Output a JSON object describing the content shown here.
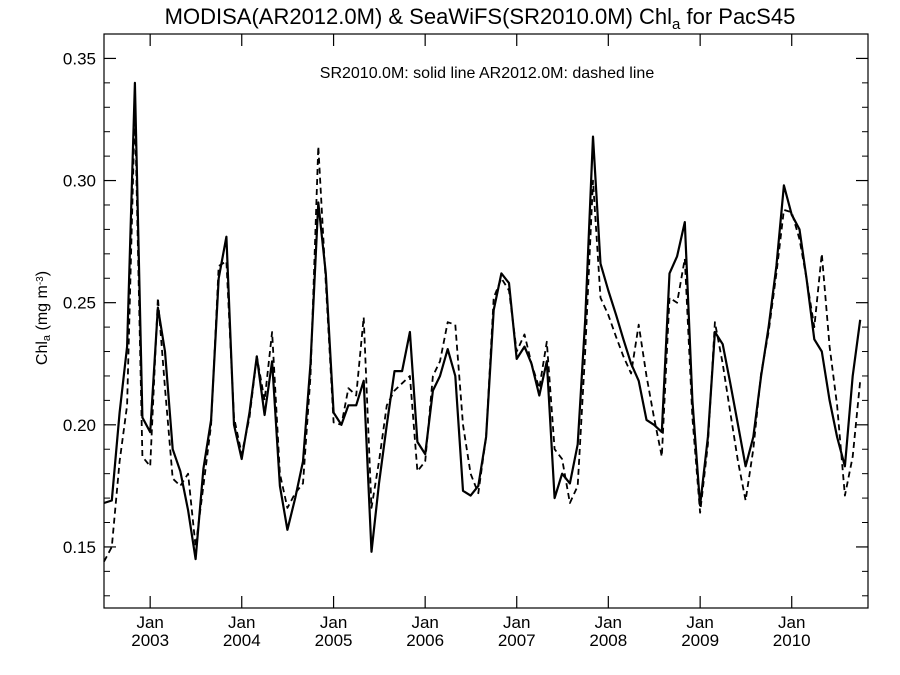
{
  "chart_data": {
    "type": "line",
    "title": {
      "main": "MODISA(AR2012.0M) & SeaWiFS(SR2010.0M)  Chl",
      "sub": "a",
      "tail": " for PacS45"
    },
    "ylabel": {
      "main": "Chl",
      "sub": "a",
      "unit": " (mg m",
      "sup": "-3",
      "close": ")"
    },
    "legend_text": "SR2010.0M: solid line   AR2012.0M: dashed line",
    "legend_placement": "top-center",
    "grid": false,
    "xlim": [
      "2002-07-01",
      "2010-11-01"
    ],
    "ylim": [
      0.125,
      0.36
    ],
    "y_ticks": [
      0.15,
      0.2,
      0.25,
      0.3,
      0.35
    ],
    "y_tick_labels": [
      "0.15",
      "0.20",
      "0.25",
      "0.30",
      "0.35"
    ],
    "x_ticks": [
      {
        "date": "2003-01-01",
        "month": "Jan",
        "year": "2003"
      },
      {
        "date": "2004-01-01",
        "month": "Jan",
        "year": "2004"
      },
      {
        "date": "2005-01-01",
        "month": "Jan",
        "year": "2005"
      },
      {
        "date": "2006-01-01",
        "month": "Jan",
        "year": "2006"
      },
      {
        "date": "2007-01-01",
        "month": "Jan",
        "year": "2007"
      },
      {
        "date": "2008-01-01",
        "month": "Jan",
        "year": "2008"
      },
      {
        "date": "2009-01-01",
        "month": "Jan",
        "year": "2009"
      },
      {
        "date": "2010-01-01",
        "month": "Jan",
        "year": "2010"
      }
    ],
    "series": [
      {
        "name": "SR2010.0M",
        "style": "solid",
        "points": [
          [
            "2002-07-01",
            0.168
          ],
          [
            "2002-08-01",
            0.169
          ],
          [
            "2002-09-01",
            0.205
          ],
          [
            "2002-10-01",
            0.232
          ],
          [
            "2002-11-01",
            0.34
          ],
          [
            "2002-12-01",
            0.203
          ],
          [
            "2003-01-01",
            0.197
          ],
          [
            "2003-02-01",
            0.248
          ],
          [
            "2003-03-01",
            0.23
          ],
          [
            "2003-04-01",
            0.19
          ],
          [
            "2003-05-01",
            0.181
          ],
          [
            "2003-06-01",
            0.165
          ],
          [
            "2003-07-01",
            0.145
          ],
          [
            "2003-08-01",
            0.182
          ],
          [
            "2003-09-01",
            0.202
          ],
          [
            "2003-10-01",
            0.26
          ],
          [
            "2003-11-01",
            0.277
          ],
          [
            "2003-12-01",
            0.2
          ],
          [
            "2004-01-01",
            0.186
          ],
          [
            "2004-02-01",
            0.205
          ],
          [
            "2004-03-01",
            0.228
          ],
          [
            "2004-04-01",
            0.204
          ],
          [
            "2004-05-01",
            0.226
          ],
          [
            "2004-06-01",
            0.175
          ],
          [
            "2004-07-01",
            0.157
          ],
          [
            "2004-08-01",
            0.17
          ],
          [
            "2004-09-01",
            0.185
          ],
          [
            "2004-10-01",
            0.225
          ],
          [
            "2004-11-01",
            0.291
          ],
          [
            "2004-12-01",
            0.262
          ],
          [
            "2005-01-01",
            0.205
          ],
          [
            "2005-02-01",
            0.2
          ],
          [
            "2005-03-01",
            0.208
          ],
          [
            "2005-04-01",
            0.208
          ],
          [
            "2005-05-01",
            0.218
          ],
          [
            "2005-06-01",
            0.148
          ],
          [
            "2005-07-01",
            0.176
          ],
          [
            "2005-08-01",
            0.2
          ],
          [
            "2005-09-01",
            0.222
          ],
          [
            "2005-10-01",
            0.222
          ],
          [
            "2005-11-01",
            0.238
          ],
          [
            "2005-12-01",
            0.193
          ],
          [
            "2006-01-01",
            0.188
          ],
          [
            "2006-02-01",
            0.214
          ],
          [
            "2006-03-01",
            0.22
          ],
          [
            "2006-04-01",
            0.231
          ],
          [
            "2006-05-01",
            0.22
          ],
          [
            "2006-06-01",
            0.173
          ],
          [
            "2006-07-01",
            0.171
          ],
          [
            "2006-08-01",
            0.175
          ],
          [
            "2006-09-01",
            0.195
          ],
          [
            "2006-10-01",
            0.247
          ],
          [
            "2006-11-01",
            0.262
          ],
          [
            "2006-12-01",
            0.258
          ],
          [
            "2007-01-01",
            0.227
          ],
          [
            "2007-02-01",
            0.232
          ],
          [
            "2007-03-01",
            0.225
          ],
          [
            "2007-04-01",
            0.212
          ],
          [
            "2007-05-01",
            0.226
          ],
          [
            "2007-06-01",
            0.17
          ],
          [
            "2007-07-01",
            0.18
          ],
          [
            "2007-08-01",
            0.176
          ],
          [
            "2007-09-01",
            0.192
          ],
          [
            "2007-10-01",
            0.243
          ],
          [
            "2007-11-01",
            0.318
          ],
          [
            "2007-12-01",
            0.266
          ],
          [
            "2008-01-01",
            0.255
          ],
          [
            "2008-02-01",
            0.245
          ],
          [
            "2008-03-01",
            0.235
          ],
          [
            "2008-04-01",
            0.225
          ],
          [
            "2008-05-01",
            0.218
          ],
          [
            "2008-06-01",
            0.202
          ],
          [
            "2008-07-01",
            0.2
          ],
          [
            "2008-08-01",
            0.197
          ],
          [
            "2008-09-01",
            0.262
          ],
          [
            "2008-10-01",
            0.269
          ],
          [
            "2008-11-01",
            0.283
          ],
          [
            "2008-12-01",
            0.21
          ],
          [
            "2009-01-01",
            0.167
          ],
          [
            "2009-02-01",
            0.195
          ],
          [
            "2009-03-01",
            0.238
          ],
          [
            "2009-04-01",
            0.233
          ],
          [
            "2009-05-01",
            0.217
          ],
          [
            "2009-06-01",
            0.2
          ],
          [
            "2009-07-01",
            0.183
          ],
          [
            "2009-08-01",
            0.195
          ],
          [
            "2009-09-01",
            0.22
          ],
          [
            "2009-10-01",
            0.24
          ],
          [
            "2009-11-01",
            0.265
          ],
          [
            "2009-12-01",
            0.298
          ],
          [
            "2010-01-01",
            0.286
          ],
          [
            "2010-02-01",
            0.28
          ],
          [
            "2010-03-01",
            0.26
          ],
          [
            "2010-04-01",
            0.235
          ],
          [
            "2010-05-01",
            0.23
          ],
          [
            "2010-06-01",
            0.21
          ],
          [
            "2010-07-01",
            0.195
          ],
          [
            "2010-08-01",
            0.183
          ],
          [
            "2010-09-01",
            0.22
          ],
          [
            "2010-10-01",
            0.243
          ]
        ]
      },
      {
        "name": "AR2012.0M",
        "style": "dashed",
        "points": [
          [
            "2002-07-01",
            0.144
          ],
          [
            "2002-08-01",
            0.15
          ],
          [
            "2002-09-01",
            0.185
          ],
          [
            "2002-10-01",
            0.208
          ],
          [
            "2002-11-01",
            0.33
          ],
          [
            "2002-12-01",
            0.187
          ],
          [
            "2003-01-01",
            0.183
          ],
          [
            "2003-02-01",
            0.252
          ],
          [
            "2003-03-01",
            0.215
          ],
          [
            "2003-04-01",
            0.178
          ],
          [
            "2003-05-01",
            0.175
          ],
          [
            "2003-06-01",
            0.18
          ],
          [
            "2003-07-01",
            0.15
          ],
          [
            "2003-08-01",
            0.175
          ],
          [
            "2003-09-01",
            0.2
          ],
          [
            "2003-10-01",
            0.265
          ],
          [
            "2003-11-01",
            0.267
          ],
          [
            "2003-12-01",
            0.203
          ],
          [
            "2004-01-01",
            0.188
          ],
          [
            "2004-02-01",
            0.203
          ],
          [
            "2004-03-01",
            0.228
          ],
          [
            "2004-04-01",
            0.21
          ],
          [
            "2004-05-01",
            0.238
          ],
          [
            "2004-06-01",
            0.18
          ],
          [
            "2004-07-01",
            0.166
          ],
          [
            "2004-08-01",
            0.172
          ],
          [
            "2004-09-01",
            0.176
          ],
          [
            "2004-10-01",
            0.22
          ],
          [
            "2004-11-01",
            0.314
          ],
          [
            "2004-12-01",
            0.258
          ],
          [
            "2005-01-01",
            0.201
          ],
          [
            "2005-02-01",
            0.2
          ],
          [
            "2005-03-01",
            0.215
          ],
          [
            "2005-04-01",
            0.212
          ],
          [
            "2005-05-01",
            0.244
          ],
          [
            "2005-06-01",
            0.166
          ],
          [
            "2005-07-01",
            0.185
          ],
          [
            "2005-08-01",
            0.208
          ],
          [
            "2005-09-01",
            0.214
          ],
          [
            "2005-10-01",
            0.217
          ],
          [
            "2005-11-01",
            0.22
          ],
          [
            "2005-12-01",
            0.181
          ],
          [
            "2006-01-01",
            0.185
          ],
          [
            "2006-02-01",
            0.22
          ],
          [
            "2006-03-01",
            0.226
          ],
          [
            "2006-04-01",
            0.242
          ],
          [
            "2006-05-01",
            0.241
          ],
          [
            "2006-06-01",
            0.2
          ],
          [
            "2006-07-01",
            0.18
          ],
          [
            "2006-08-01",
            0.172
          ],
          [
            "2006-09-01",
            0.195
          ],
          [
            "2006-10-01",
            0.252
          ],
          [
            "2006-11-01",
            0.26
          ],
          [
            "2006-12-01",
            0.255
          ],
          [
            "2007-01-01",
            0.23
          ],
          [
            "2007-02-01",
            0.237
          ],
          [
            "2007-03-01",
            0.225
          ],
          [
            "2007-04-01",
            0.215
          ],
          [
            "2007-05-01",
            0.234
          ],
          [
            "2007-06-01",
            0.19
          ],
          [
            "2007-07-01",
            0.186
          ],
          [
            "2007-08-01",
            0.168
          ],
          [
            "2007-09-01",
            0.175
          ],
          [
            "2007-10-01",
            0.23
          ],
          [
            "2007-11-01",
            0.3
          ],
          [
            "2007-12-01",
            0.252
          ],
          [
            "2008-01-01",
            0.245
          ],
          [
            "2008-02-01",
            0.236
          ],
          [
            "2008-03-01",
            0.228
          ],
          [
            "2008-04-01",
            0.221
          ],
          [
            "2008-05-01",
            0.241
          ],
          [
            "2008-06-01",
            0.22
          ],
          [
            "2008-07-01",
            0.203
          ],
          [
            "2008-08-01",
            0.187
          ],
          [
            "2008-09-01",
            0.252
          ],
          [
            "2008-10-01",
            0.25
          ],
          [
            "2008-11-01",
            0.268
          ],
          [
            "2008-12-01",
            0.203
          ],
          [
            "2009-01-01",
            0.164
          ],
          [
            "2009-02-01",
            0.192
          ],
          [
            "2009-03-01",
            0.242
          ],
          [
            "2009-04-01",
            0.225
          ],
          [
            "2009-05-01",
            0.205
          ],
          [
            "2009-06-01",
            0.185
          ],
          [
            "2009-07-01",
            0.169
          ],
          [
            "2009-08-01",
            0.19
          ],
          [
            "2009-09-01",
            0.221
          ],
          [
            "2009-10-01",
            0.238
          ],
          [
            "2009-11-01",
            0.262
          ],
          [
            "2009-12-01",
            0.288
          ],
          [
            "2010-01-01",
            0.287
          ],
          [
            "2010-02-01",
            0.276
          ],
          [
            "2010-03-01",
            0.26
          ],
          [
            "2010-04-01",
            0.24
          ],
          [
            "2010-05-01",
            0.27
          ],
          [
            "2010-06-01",
            0.232
          ],
          [
            "2010-07-01",
            0.208
          ],
          [
            "2010-08-01",
            0.171
          ],
          [
            "2010-09-01",
            0.187
          ],
          [
            "2010-10-01",
            0.218
          ]
        ]
      }
    ]
  }
}
